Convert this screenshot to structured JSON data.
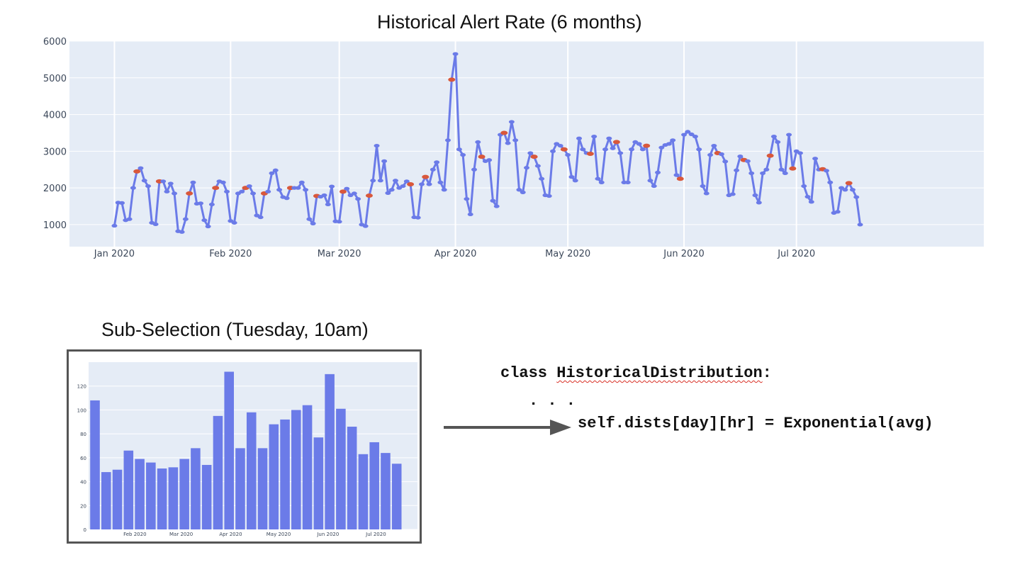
{
  "colors": {
    "plot_bg": "#e5ecf6",
    "grid": "#ffffff",
    "line": "#6b7be8",
    "marker": "#6b7be8",
    "anomaly": "#d9583b",
    "bar": "#6b7be8",
    "axis_text": "#3b4759"
  },
  "chart_data": [
    {
      "type": "line",
      "title": "Historical Alert Rate (6 months)",
      "xlabel": "",
      "ylabel": "",
      "x_start": "2020-01-01",
      "x_end": "2020-07-18",
      "xlim": [
        "2019-12-20",
        "2020-08-20"
      ],
      "ylim": [
        400,
        6000
      ],
      "y_ticks": [
        1000,
        2000,
        3000,
        4000,
        5000,
        6000
      ],
      "x_ticks": [
        {
          "date": "2020-01-01",
          "label": "Jan 2020"
        },
        {
          "date": "2020-02-01",
          "label": "Feb 2020"
        },
        {
          "date": "2020-03-01",
          "label": "Mar 2020"
        },
        {
          "date": "2020-04-01",
          "label": "Apr 2020"
        },
        {
          "date": "2020-05-01",
          "label": "May 2020"
        },
        {
          "date": "2020-06-01",
          "label": "Jun 2020"
        },
        {
          "date": "2020-07-01",
          "label": "Jul 2020"
        }
      ],
      "grid": true,
      "series": [
        {
          "values": [
            970,
            1600,
            1590,
            1120,
            1150,
            2000,
            2450,
            2540,
            2200,
            2050,
            1050,
            1010,
            2180,
            2180,
            1900,
            2120,
            1850,
            820,
            800,
            1150,
            1850,
            2150,
            1570,
            1580,
            1120,
            950,
            1550,
            2000,
            2180,
            2150,
            1900,
            1100,
            1050,
            1850,
            1900,
            2000,
            2050,
            1850,
            1250,
            1200,
            1850,
            1900,
            2400,
            2480,
            1950,
            1750,
            1720,
            2000,
            2000,
            2000,
            2150,
            1950,
            1150,
            1030,
            1780,
            1760,
            1800,
            1550,
            2040,
            1090,
            1080,
            1900,
            1980,
            1800,
            1850,
            1700,
            1000,
            960,
            1790,
            2200,
            3150,
            2200,
            2730,
            1860,
            1950,
            2200,
            2000,
            2050,
            2180,
            2100,
            1200,
            1190,
            2100,
            2300,
            2100,
            2500,
            2700,
            2150,
            1950,
            3300,
            4950,
            5650,
            3050,
            2900,
            1700,
            1280,
            2500,
            3250,
            2850,
            2730,
            2760,
            1650,
            1500,
            3450,
            3500,
            3220,
            3800,
            3300,
            1950,
            1880,
            2550,
            2950,
            2850,
            2600,
            2250,
            1800,
            1780,
            3000,
            3200,
            3150,
            3050,
            2900,
            2300,
            2200,
            3350,
            3050,
            2950,
            2930,
            3400,
            2250,
            2150,
            3050,
            3350,
            3080,
            3250,
            2950,
            2150,
            2150,
            3050,
            3250,
            3200,
            3050,
            3150,
            2200,
            2050,
            2420,
            3100,
            3170,
            3200,
            3300,
            2350,
            2250,
            3450,
            3530,
            3460,
            3400,
            3050,
            2050,
            1850,
            2900,
            3150,
            2950,
            2920,
            2720,
            1800,
            1830,
            2480,
            2860,
            2760,
            2730,
            2400,
            1800,
            1600,
            2400,
            2500,
            2880,
            3400,
            3250,
            2500,
            2400,
            3450,
            2530,
            3000,
            2950,
            2050,
            1760,
            1620,
            2800,
            2500,
            2510,
            2470,
            2150,
            1320,
            1350,
            2000,
            1950,
            2130,
            1950,
            1750,
            1000
          ],
          "anomalies": [
            6,
            12,
            20,
            27,
            35,
            40,
            47,
            54,
            61,
            68,
            79,
            83,
            90,
            98,
            104,
            112,
            120,
            127,
            134,
            142,
            151,
            161,
            168,
            175,
            181,
            189,
            196,
            203
          ]
        }
      ]
    },
    {
      "type": "bar",
      "title": "Sub-Selection (Tuesday, 10am)",
      "xlabel": "",
      "ylabel": "",
      "x_start": "2020-01-07",
      "step_days": 7,
      "xlim": [
        "2020-01-03",
        "2020-07-27"
      ],
      "ylim": [
        0,
        140
      ],
      "y_ticks": [
        0,
        20,
        40,
        60,
        80,
        100,
        120
      ],
      "x_ticks": [
        {
          "date": "2020-02-01",
          "label": "Feb 2020"
        },
        {
          "date": "2020-03-01",
          "label": "Mar 2020"
        },
        {
          "date": "2020-04-01",
          "label": "Apr 2020"
        },
        {
          "date": "2020-05-01",
          "label": "May 2020"
        },
        {
          "date": "2020-06-01",
          "label": "Jun 2020"
        },
        {
          "date": "2020-07-01",
          "label": "Jul 2020"
        }
      ],
      "grid": true,
      "values": [
        108,
        48,
        50,
        66,
        59,
        56,
        51,
        52,
        59,
        68,
        54,
        95,
        132,
        68,
        98,
        68,
        88,
        92,
        100,
        104,
        77,
        130,
        101,
        86,
        63,
        73,
        64,
        55
      ]
    }
  ],
  "code": {
    "keyword": "class",
    "class_name": "HistoricalDistribution",
    "colon": ":",
    "ellipsis": ". . .",
    "assignment": "self.dists[day][hr] = Exponential(avg)"
  }
}
